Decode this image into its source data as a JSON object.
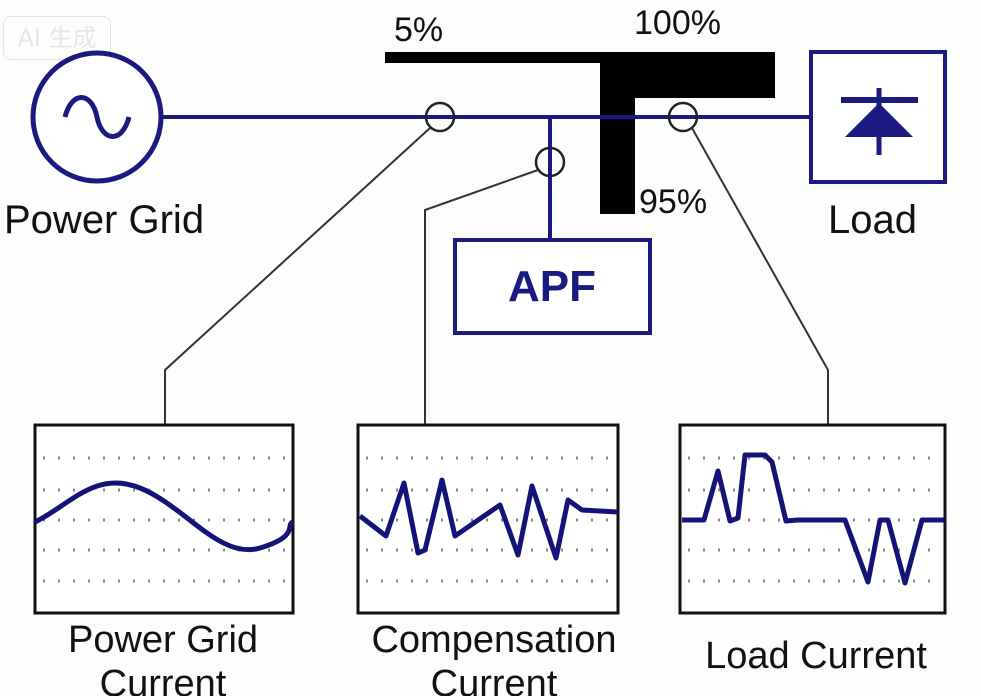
{
  "watermark": "AI 生成",
  "labels": {
    "percent_5": "5%",
    "percent_100": "100%",
    "percent_95": "95%",
    "power_grid": "Power Grid",
    "load": "Load",
    "apf": "APF"
  },
  "scopes": [
    {
      "title_line1": "Power Grid",
      "title_line2": "Current"
    },
    {
      "title_line1": "Compensation",
      "title_line2": "Current"
    },
    {
      "title_line1": "Load Current",
      "title_line2": ""
    }
  ],
  "colors": {
    "line": "#1a1a80",
    "waveform": "#141478",
    "bar": "#000000"
  }
}
